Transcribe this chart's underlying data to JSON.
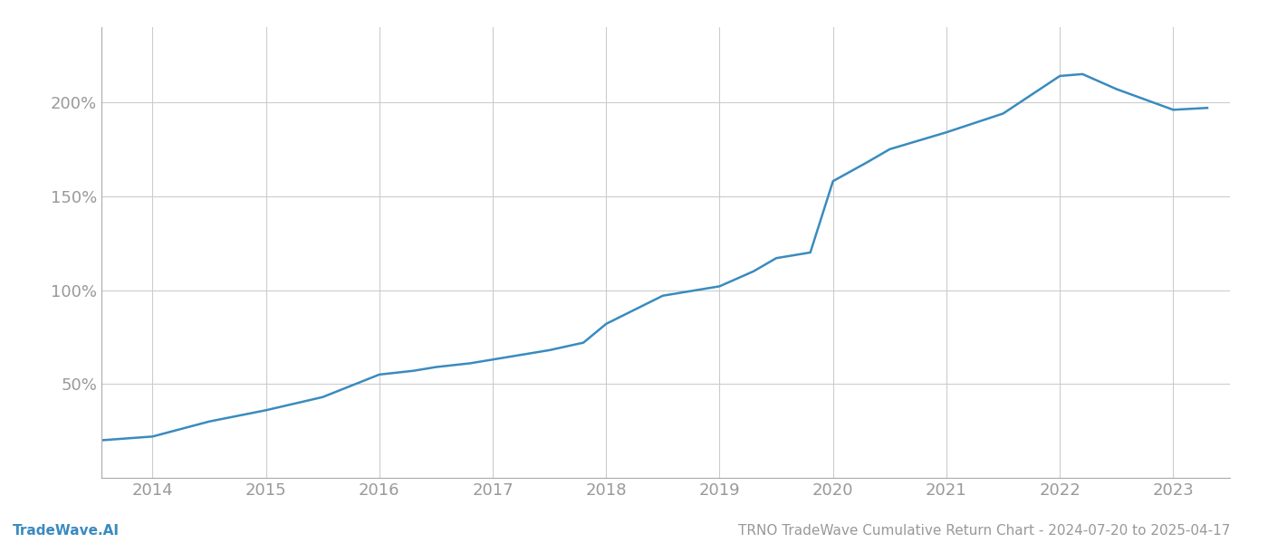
{
  "title": "TRNO TradeWave Cumulative Return Chart - 2024-07-20 to 2025-04-17",
  "watermark": "TradeWave.AI",
  "line_color": "#3a8bbf",
  "background_color": "#ffffff",
  "grid_color": "#cccccc",
  "x_years": [
    2013.55,
    2014.0,
    2014.5,
    2015.0,
    2015.5,
    2016.0,
    2016.3,
    2016.5,
    2016.8,
    2017.0,
    2017.3,
    2017.5,
    2017.8,
    2018.0,
    2018.3,
    2018.5,
    2018.8,
    2019.0,
    2019.3,
    2019.5,
    2019.8,
    2020.0,
    2020.3,
    2020.5,
    2021.0,
    2021.5,
    2022.0,
    2022.2,
    2022.5,
    2023.0,
    2023.3
  ],
  "y_values": [
    20,
    22,
    30,
    36,
    43,
    55,
    57,
    59,
    61,
    63,
    66,
    68,
    72,
    82,
    91,
    97,
    100,
    102,
    110,
    117,
    120,
    158,
    168,
    175,
    184,
    194,
    214,
    215,
    207,
    196,
    197
  ],
  "yticks": [
    50,
    100,
    150,
    200
  ],
  "ylim": [
    0,
    240
  ],
  "xlim": [
    2013.55,
    2023.5
  ],
  "xticks": [
    2014,
    2015,
    2016,
    2017,
    2018,
    2019,
    2020,
    2021,
    2022,
    2023
  ],
  "tick_color": "#999999",
  "tick_fontsize": 13,
  "title_fontsize": 11,
  "watermark_fontsize": 11,
  "line_width": 1.8
}
